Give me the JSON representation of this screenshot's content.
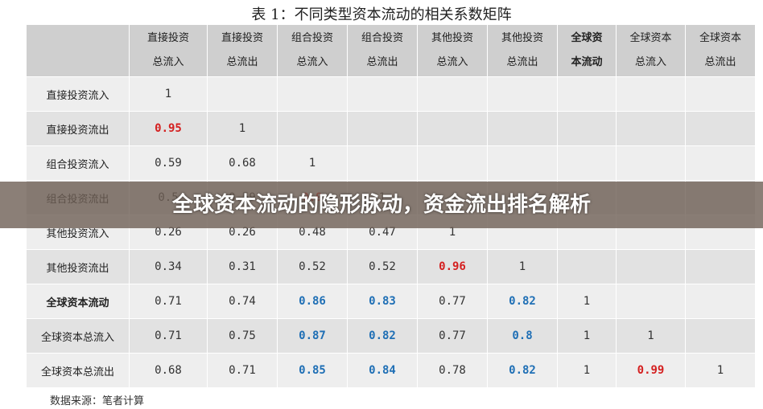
{
  "title": "表 1：不同类型资本流动的相关系数矩阵",
  "source": "数据来源：笔者计算",
  "banner": "全球资本流动的隐形脉动，资金流出排名解析",
  "headers": [
    {
      "l1": "直接投资",
      "l2": "总流入",
      "bold": false
    },
    {
      "l1": "直接投资",
      "l2": "总流出",
      "bold": false
    },
    {
      "l1": "组合投资",
      "l2": "总流入",
      "bold": false
    },
    {
      "l1": "组合投资",
      "l2": "总流出",
      "bold": false
    },
    {
      "l1": "其他投资",
      "l2": "总流入",
      "bold": false
    },
    {
      "l1": "其他投资",
      "l2": "总流出",
      "bold": false
    },
    {
      "l1": "全球资",
      "l2": "本流动",
      "bold": true
    },
    {
      "l1": "全球资本",
      "l2": "总流入",
      "bold": false
    },
    {
      "l1": "全球资本",
      "l2": "总流出",
      "bold": false
    }
  ],
  "rows": [
    {
      "label": "直接投资流入",
      "bold": false,
      "cells": [
        "1",
        "",
        "",
        "",
        "",
        "",
        "",
        "",
        ""
      ],
      "colors": [
        "",
        "",
        "",
        "",
        "",
        "",
        "",
        "",
        ""
      ]
    },
    {
      "label": "直接投资流出",
      "bold": false,
      "cells": [
        "0.95",
        "1",
        "",
        "",
        "",
        "",
        "",
        "",
        ""
      ],
      "colors": [
        "red",
        "",
        "",
        "",
        "",
        "",
        "",
        "",
        ""
      ]
    },
    {
      "label": "组合投资流入",
      "bold": false,
      "cells": [
        "0.59",
        "0.68",
        "1",
        "",
        "",
        "",
        "",
        "",
        ""
      ],
      "colors": [
        "",
        "",
        "",
        "",
        "",
        "",
        "",
        "",
        ""
      ]
    },
    {
      "label": "组合投资流出",
      "bold": false,
      "cells": [
        "0.5",
        "0.59",
        "0.9",
        "1",
        "",
        "",
        "",
        "",
        ""
      ],
      "colors": [
        "",
        "",
        "red",
        "",
        "",
        "",
        "",
        "",
        ""
      ]
    },
    {
      "label": "其他投资流入",
      "bold": false,
      "cells": [
        "0.26",
        "0.26",
        "0.48",
        "0.47",
        "1",
        "",
        "",
        "",
        ""
      ],
      "colors": [
        "",
        "",
        "",
        "",
        "",
        "",
        "",
        "",
        ""
      ]
    },
    {
      "label": "其他投资流出",
      "bold": false,
      "cells": [
        "0.34",
        "0.31",
        "0.52",
        "0.52",
        "0.96",
        "1",
        "",
        "",
        ""
      ],
      "colors": [
        "",
        "",
        "",
        "",
        "red",
        "",
        "",
        "",
        ""
      ]
    },
    {
      "label": "全球资本流动",
      "bold": true,
      "cells": [
        "0.71",
        "0.74",
        "0.86",
        "0.83",
        "0.77",
        "0.82",
        "1",
        "",
        ""
      ],
      "colors": [
        "",
        "",
        "blue",
        "blue",
        "",
        "blue",
        "",
        "",
        ""
      ]
    },
    {
      "label": "全球资本总流入",
      "bold": false,
      "cells": [
        "0.71",
        "0.75",
        "0.87",
        "0.82",
        "0.77",
        "0.8",
        "1",
        "1",
        ""
      ],
      "colors": [
        "",
        "",
        "blue",
        "blue",
        "",
        "blue",
        "",
        "",
        ""
      ]
    },
    {
      "label": "全球资本总流出",
      "bold": false,
      "cells": [
        "0.68",
        "0.71",
        "0.85",
        "0.84",
        "0.78",
        "0.82",
        "1",
        "0.99",
        "1"
      ],
      "colors": [
        "",
        "",
        "blue",
        "blue",
        "",
        "blue",
        "",
        "red",
        ""
      ]
    }
  ]
}
